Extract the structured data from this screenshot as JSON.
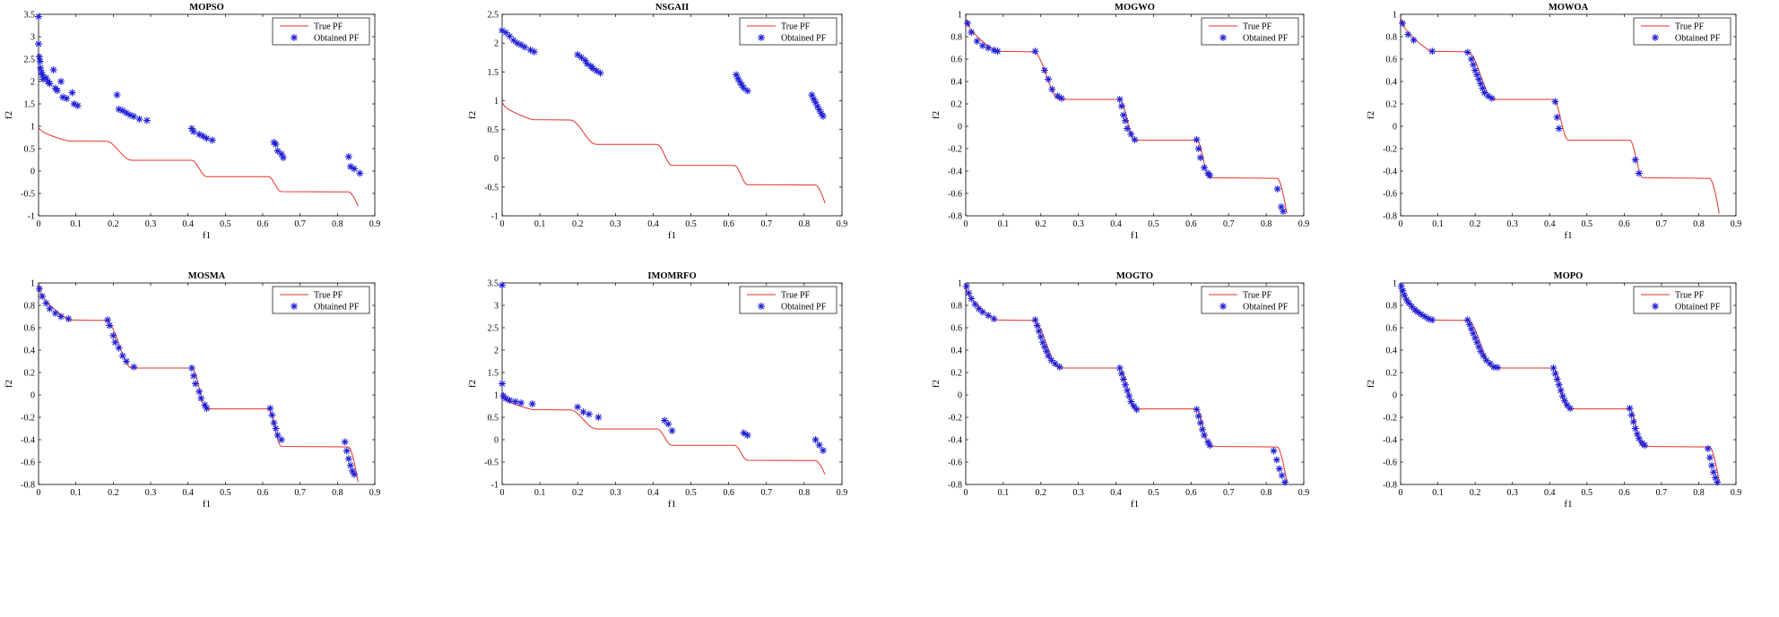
{
  "figure": {
    "description_panels": 8
  },
  "chart_data": [
    {
      "type": "scatter",
      "title": "MOPSO",
      "xlabel": "f1",
      "ylabel": "f2",
      "xlim": [
        0,
        0.9
      ],
      "ylim": [
        -1,
        3.5
      ],
      "xticks": [
        "0",
        "0.1",
        "0.2",
        "0.3",
        "0.4",
        "0.5",
        "0.6",
        "0.7",
        "0.8",
        "0.9"
      ],
      "yticks": [
        "-1",
        "-0.5",
        "0",
        "0.5",
        "1",
        "1.5",
        "2",
        "2.5",
        "3",
        "3.5"
      ],
      "legend": [
        "True PF",
        "Obtained PF"
      ],
      "legend_position": "top-right",
      "true_pf_color": "#e8302b",
      "obtained_color": "#1f1fd6",
      "points": [
        [
          0.0,
          3.45
        ],
        [
          0.0,
          2.84
        ],
        [
          0.002,
          2.55
        ],
        [
          0.004,
          2.45
        ],
        [
          0.005,
          2.3
        ],
        [
          0.008,
          2.2
        ],
        [
          0.01,
          2.15
        ],
        [
          0.012,
          2.05
        ],
        [
          0.02,
          2.08
        ],
        [
          0.025,
          2.0
        ],
        [
          0.03,
          1.95
        ],
        [
          0.04,
          2.26
        ],
        [
          0.045,
          1.85
        ],
        [
          0.05,
          1.8
        ],
        [
          0.06,
          2.0
        ],
        [
          0.065,
          1.65
        ],
        [
          0.075,
          1.62
        ],
        [
          0.09,
          1.75
        ],
        [
          0.095,
          1.5
        ],
        [
          0.105,
          1.46
        ],
        [
          0.21,
          1.7
        ],
        [
          0.215,
          1.38
        ],
        [
          0.225,
          1.35
        ],
        [
          0.235,
          1.3
        ],
        [
          0.245,
          1.25
        ],
        [
          0.255,
          1.22
        ],
        [
          0.27,
          1.16
        ],
        [
          0.29,
          1.13
        ],
        [
          0.41,
          0.95
        ],
        [
          0.415,
          0.88
        ],
        [
          0.43,
          0.82
        ],
        [
          0.44,
          0.78
        ],
        [
          0.45,
          0.73
        ],
        [
          0.465,
          0.69
        ],
        [
          0.63,
          0.64
        ],
        [
          0.635,
          0.6
        ],
        [
          0.64,
          0.45
        ],
        [
          0.65,
          0.38
        ],
        [
          0.655,
          0.3
        ],
        [
          0.83,
          0.32
        ],
        [
          0.835,
          0.1
        ],
        [
          0.845,
          0.05
        ],
        [
          0.86,
          -0.05
        ]
      ]
    },
    {
      "type": "scatter",
      "title": "NSGAII",
      "xlabel": "f1",
      "ylabel": "f2",
      "xlim": [
        0,
        0.9
      ],
      "ylim": [
        -1,
        2.5
      ],
      "xticks": [
        "0",
        "0.1",
        "0.2",
        "0.3",
        "0.4",
        "0.5",
        "0.6",
        "0.7",
        "0.8",
        "0.9"
      ],
      "yticks": [
        "-1",
        "-0.5",
        "0",
        "0.5",
        "1",
        "1.5",
        "2",
        "2.5"
      ],
      "legend": [
        "True PF",
        "Obtained PF"
      ],
      "legend_position": "top-right",
      "true_pf_color": "#e8302b",
      "obtained_color": "#1f1fd6",
      "points": [
        [
          0.0,
          2.22
        ],
        [
          0.01,
          2.18
        ],
        [
          0.02,
          2.12
        ],
        [
          0.03,
          2.05
        ],
        [
          0.04,
          2.0
        ],
        [
          0.05,
          1.97
        ],
        [
          0.06,
          1.93
        ],
        [
          0.075,
          1.88
        ],
        [
          0.085,
          1.85
        ],
        [
          0.2,
          1.8
        ],
        [
          0.21,
          1.75
        ],
        [
          0.22,
          1.7
        ],
        [
          0.225,
          1.64
        ],
        [
          0.235,
          1.6
        ],
        [
          0.24,
          1.56
        ],
        [
          0.25,
          1.52
        ],
        [
          0.26,
          1.48
        ],
        [
          0.62,
          1.45
        ],
        [
          0.625,
          1.38
        ],
        [
          0.63,
          1.32
        ],
        [
          0.635,
          1.27
        ],
        [
          0.64,
          1.22
        ],
        [
          0.65,
          1.17
        ],
        [
          0.82,
          1.1
        ],
        [
          0.825,
          1.03
        ],
        [
          0.83,
          0.97
        ],
        [
          0.835,
          0.9
        ],
        [
          0.84,
          0.84
        ],
        [
          0.845,
          0.78
        ],
        [
          0.85,
          0.73
        ]
      ]
    },
    {
      "type": "scatter",
      "title": "MOGWO",
      "xlabel": "f1",
      "ylabel": "f2",
      "xlim": [
        0,
        0.9
      ],
      "ylim": [
        -0.8,
        1
      ],
      "xticks": [
        "0",
        "0.1",
        "0.2",
        "0.3",
        "0.4",
        "0.5",
        "0.6",
        "0.7",
        "0.8",
        "0.9"
      ],
      "yticks": [
        "-0.8",
        "-0.6",
        "-0.4",
        "-0.2",
        "0",
        "0.2",
        "0.4",
        "0.6",
        "0.8",
        "1"
      ],
      "legend": [
        "True PF",
        "Obtained PF"
      ],
      "legend_position": "top-right",
      "true_pf_color": "#e8302b",
      "obtained_color": "#1f1fd6",
      "points": [
        [
          0.005,
          0.92
        ],
        [
          0.015,
          0.84
        ],
        [
          0.03,
          0.76
        ],
        [
          0.045,
          0.72
        ],
        [
          0.06,
          0.7
        ],
        [
          0.075,
          0.68
        ],
        [
          0.085,
          0.67
        ],
        [
          0.185,
          0.67
        ],
        [
          0.21,
          0.5
        ],
        [
          0.22,
          0.42
        ],
        [
          0.23,
          0.33
        ],
        [
          0.245,
          0.27
        ],
        [
          0.255,
          0.25
        ],
        [
          0.41,
          0.24
        ],
        [
          0.415,
          0.18
        ],
        [
          0.42,
          0.1
        ],
        [
          0.425,
          0.05
        ],
        [
          0.43,
          -0.02
        ],
        [
          0.44,
          -0.07
        ],
        [
          0.45,
          -0.12
        ],
        [
          0.615,
          -0.12
        ],
        [
          0.62,
          -0.2
        ],
        [
          0.625,
          -0.28
        ],
        [
          0.635,
          -0.37
        ],
        [
          0.645,
          -0.42
        ],
        [
          0.65,
          -0.44
        ],
        [
          0.83,
          -0.56
        ],
        [
          0.84,
          -0.72
        ],
        [
          0.845,
          -0.76
        ]
      ]
    },
    {
      "type": "scatter",
      "title": "MOWOA",
      "xlabel": "f1",
      "ylabel": "f2",
      "xlim": [
        0,
        0.9
      ],
      "ylim": [
        -0.8,
        1
      ],
      "xticks": [
        "0",
        "0.1",
        "0.2",
        "0.3",
        "0.4",
        "0.5",
        "0.6",
        "0.7",
        "0.8",
        "0.9"
      ],
      "yticks": [
        "-0.8",
        "-0.6",
        "-0.4",
        "-0.2",
        "0",
        "0.2",
        "0.4",
        "0.6",
        "0.8",
        "1"
      ],
      "legend": [
        "True PF",
        "Obtained PF"
      ],
      "legend_position": "top-right",
      "true_pf_color": "#e8302b",
      "obtained_color": "#1f1fd6",
      "points": [
        [
          0.005,
          0.92
        ],
        [
          0.02,
          0.82
        ],
        [
          0.035,
          0.77
        ],
        [
          0.085,
          0.67
        ],
        [
          0.18,
          0.66
        ],
        [
          0.19,
          0.6
        ],
        [
          0.195,
          0.55
        ],
        [
          0.2,
          0.5
        ],
        [
          0.205,
          0.46
        ],
        [
          0.21,
          0.42
        ],
        [
          0.215,
          0.38
        ],
        [
          0.22,
          0.34
        ],
        [
          0.225,
          0.3
        ],
        [
          0.235,
          0.27
        ],
        [
          0.245,
          0.25
        ],
        [
          0.415,
          0.22
        ],
        [
          0.42,
          0.08
        ],
        [
          0.425,
          -0.02
        ],
        [
          0.63,
          -0.3
        ],
        [
          0.64,
          -0.42
        ]
      ]
    },
    {
      "type": "scatter",
      "title": "MOSMA",
      "xlabel": "f1",
      "ylabel": "f2",
      "xlim": [
        0,
        0.9
      ],
      "ylim": [
        -0.8,
        1
      ],
      "xticks": [
        "0",
        "0.1",
        "0.2",
        "0.3",
        "0.4",
        "0.5",
        "0.6",
        "0.7",
        "0.8",
        "0.9"
      ],
      "yticks": [
        "-0.8",
        "-0.6",
        "-0.4",
        "-0.2",
        "0",
        "0.2",
        "0.4",
        "0.6",
        "0.8",
        "1"
      ],
      "legend": [
        "True PF",
        "Obtained PF"
      ],
      "legend_position": "top-right",
      "true_pf_color": "#e8302b",
      "obtained_color": "#1f1fd6",
      "points": [
        [
          0.002,
          0.95
        ],
        [
          0.01,
          0.88
        ],
        [
          0.02,
          0.82
        ],
        [
          0.03,
          0.77
        ],
        [
          0.045,
          0.73
        ],
        [
          0.06,
          0.7
        ],
        [
          0.08,
          0.68
        ],
        [
          0.185,
          0.67
        ],
        [
          0.19,
          0.62
        ],
        [
          0.2,
          0.53
        ],
        [
          0.205,
          0.47
        ],
        [
          0.215,
          0.42
        ],
        [
          0.225,
          0.35
        ],
        [
          0.235,
          0.3
        ],
        [
          0.255,
          0.25
        ],
        [
          0.41,
          0.24
        ],
        [
          0.415,
          0.17
        ],
        [
          0.42,
          0.1
        ],
        [
          0.43,
          0.03
        ],
        [
          0.435,
          -0.03
        ],
        [
          0.445,
          -0.09
        ],
        [
          0.45,
          -0.12
        ],
        [
          0.62,
          -0.12
        ],
        [
          0.625,
          -0.18
        ],
        [
          0.63,
          -0.25
        ],
        [
          0.635,
          -0.3
        ],
        [
          0.64,
          -0.36
        ],
        [
          0.65,
          -0.4
        ],
        [
          0.82,
          -0.42
        ],
        [
          0.825,
          -0.5
        ],
        [
          0.83,
          -0.57
        ],
        [
          0.835,
          -0.63
        ],
        [
          0.84,
          -0.68
        ],
        [
          0.845,
          -0.71
        ]
      ]
    },
    {
      "type": "scatter",
      "title": "IMOMRFO",
      "xlabel": "f1",
      "ylabel": "f2",
      "xlim": [
        0,
        0.9
      ],
      "ylim": [
        -1,
        3.5
      ],
      "xticks": [
        "0",
        "0.1",
        "0.2",
        "0.3",
        "0.4",
        "0.5",
        "0.6",
        "0.7",
        "0.8",
        "0.9"
      ],
      "yticks": [
        "-1",
        "-0.5",
        "0",
        "0.5",
        "1",
        "1.5",
        "2",
        "2.5",
        "3",
        "3.5"
      ],
      "legend": [
        "True PF",
        "Obtained PF"
      ],
      "legend_position": "top-right",
      "true_pf_color": "#e8302b",
      "obtained_color": "#1f1fd6",
      "points": [
        [
          0.0,
          3.45
        ],
        [
          0.0,
          1.25
        ],
        [
          0.003,
          0.98
        ],
        [
          0.01,
          0.92
        ],
        [
          0.02,
          0.88
        ],
        [
          0.035,
          0.85
        ],
        [
          0.05,
          0.82
        ],
        [
          0.08,
          0.8
        ],
        [
          0.2,
          0.73
        ],
        [
          0.215,
          0.62
        ],
        [
          0.23,
          0.57
        ],
        [
          0.255,
          0.5
        ],
        [
          0.43,
          0.43
        ],
        [
          0.44,
          0.35
        ],
        [
          0.45,
          0.2
        ],
        [
          0.64,
          0.15
        ],
        [
          0.65,
          0.1
        ],
        [
          0.83,
          0.0
        ],
        [
          0.84,
          -0.12
        ],
        [
          0.85,
          -0.24
        ]
      ]
    },
    {
      "type": "scatter",
      "title": "MOGTO",
      "xlabel": "f1",
      "ylabel": "f2",
      "xlim": [
        0,
        0.9
      ],
      "ylim": [
        -0.8,
        1
      ],
      "xticks": [
        "0",
        "0.1",
        "0.2",
        "0.3",
        "0.4",
        "0.5",
        "0.6",
        "0.7",
        "0.8",
        "0.9"
      ],
      "yticks": [
        "-0.8",
        "-0.6",
        "-0.4",
        "-0.2",
        "0",
        "0.2",
        "0.4",
        "0.6",
        "0.8",
        "1"
      ],
      "legend": [
        "True PF",
        "Obtained PF"
      ],
      "legend_position": "top-right",
      "true_pf_color": "#e8302b",
      "obtained_color": "#1f1fd6",
      "points": [
        [
          0.002,
          0.97
        ],
        [
          0.008,
          0.91
        ],
        [
          0.015,
          0.86
        ],
        [
          0.025,
          0.81
        ],
        [
          0.035,
          0.77
        ],
        [
          0.045,
          0.74
        ],
        [
          0.06,
          0.71
        ],
        [
          0.075,
          0.68
        ],
        [
          0.185,
          0.67
        ],
        [
          0.19,
          0.62
        ],
        [
          0.195,
          0.57
        ],
        [
          0.2,
          0.52
        ],
        [
          0.205,
          0.47
        ],
        [
          0.21,
          0.43
        ],
        [
          0.215,
          0.39
        ],
        [
          0.22,
          0.35
        ],
        [
          0.228,
          0.31
        ],
        [
          0.238,
          0.28
        ],
        [
          0.25,
          0.25
        ],
        [
          0.41,
          0.24
        ],
        [
          0.415,
          0.19
        ],
        [
          0.42,
          0.14
        ],
        [
          0.425,
          0.09
        ],
        [
          0.43,
          0.04
        ],
        [
          0.435,
          -0.01
        ],
        [
          0.44,
          -0.06
        ],
        [
          0.448,
          -0.1
        ],
        [
          0.455,
          -0.13
        ],
        [
          0.615,
          -0.13
        ],
        [
          0.62,
          -0.19
        ],
        [
          0.625,
          -0.25
        ],
        [
          0.63,
          -0.31
        ],
        [
          0.635,
          -0.36
        ],
        [
          0.645,
          -0.42
        ],
        [
          0.65,
          -0.45
        ],
        [
          0.82,
          -0.5
        ],
        [
          0.828,
          -0.58
        ],
        [
          0.835,
          -0.66
        ],
        [
          0.842,
          -0.72
        ],
        [
          0.85,
          -0.78
        ]
      ]
    },
    {
      "type": "scatter",
      "title": "MOPO",
      "xlabel": "f1",
      "ylabel": "f2",
      "xlim": [
        0,
        0.9
      ],
      "ylim": [
        -0.8,
        1
      ],
      "xticks": [
        "0",
        "0.1",
        "0.2",
        "0.3",
        "0.4",
        "0.5",
        "0.6",
        "0.7",
        "0.8",
        "0.9"
      ],
      "yticks": [
        "-0.8",
        "-0.6",
        "-0.4",
        "-0.2",
        "0",
        "0.2",
        "0.4",
        "0.6",
        "0.8",
        "1"
      ],
      "legend": [
        "True PF",
        "Obtained PF"
      ],
      "legend_position": "top-right",
      "true_pf_color": "#e8302b",
      "obtained_color": "#1f1fd6",
      "points": [
        [
          0.002,
          0.97
        ],
        [
          0.006,
          0.93
        ],
        [
          0.01,
          0.89
        ],
        [
          0.016,
          0.85
        ],
        [
          0.022,
          0.82
        ],
        [
          0.03,
          0.79
        ],
        [
          0.038,
          0.76
        ],
        [
          0.046,
          0.74
        ],
        [
          0.055,
          0.72
        ],
        [
          0.065,
          0.7
        ],
        [
          0.075,
          0.68
        ],
        [
          0.085,
          0.67
        ],
        [
          0.18,
          0.67
        ],
        [
          0.185,
          0.63
        ],
        [
          0.19,
          0.59
        ],
        [
          0.195,
          0.55
        ],
        [
          0.2,
          0.51
        ],
        [
          0.205,
          0.47
        ],
        [
          0.21,
          0.43
        ],
        [
          0.215,
          0.39
        ],
        [
          0.222,
          0.35
        ],
        [
          0.23,
          0.31
        ],
        [
          0.24,
          0.28
        ],
        [
          0.25,
          0.25
        ],
        [
          0.26,
          0.245
        ],
        [
          0.41,
          0.24
        ],
        [
          0.415,
          0.19
        ],
        [
          0.42,
          0.14
        ],
        [
          0.425,
          0.09
        ],
        [
          0.43,
          0.04
        ],
        [
          0.435,
          -0.01
        ],
        [
          0.44,
          -0.05
        ],
        [
          0.447,
          -0.09
        ],
        [
          0.455,
          -0.12
        ],
        [
          0.615,
          -0.12
        ],
        [
          0.62,
          -0.18
        ],
        [
          0.625,
          -0.24
        ],
        [
          0.63,
          -0.3
        ],
        [
          0.635,
          -0.35
        ],
        [
          0.64,
          -0.39
        ],
        [
          0.648,
          -0.43
        ],
        [
          0.655,
          -0.45
        ],
        [
          0.825,
          -0.48
        ],
        [
          0.83,
          -0.56
        ],
        [
          0.835,
          -0.63
        ],
        [
          0.84,
          -0.69
        ],
        [
          0.845,
          -0.74
        ],
        [
          0.85,
          -0.78
        ]
      ]
    }
  ]
}
